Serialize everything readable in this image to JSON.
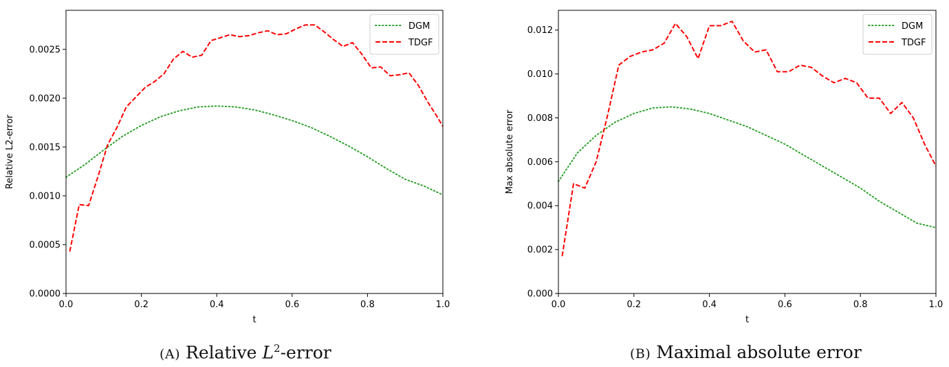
{
  "captions": {
    "a": {
      "label": "(A)",
      "text_before": "Relative ",
      "math": "L",
      "sup": "2",
      "text_after": "-error"
    },
    "b": {
      "label": "(B)",
      "text": "Maximal absolute error"
    }
  },
  "colors": {
    "DGM": "#2ca02c",
    "TDGF": "#ff0000"
  },
  "chart_data": [
    {
      "type": "line",
      "xlabel": "t",
      "ylabel": "Relative L2-error",
      "xlim": [
        0.0,
        1.0
      ],
      "ylim": [
        0.0,
        0.0029
      ],
      "xticks": [
        "0.0",
        "0.2",
        "0.4",
        "0.6",
        "0.8",
        "1.0"
      ],
      "yticks": [
        "0.0000",
        "0.0005",
        "0.0010",
        "0.0015",
        "0.0020",
        "0.0025"
      ],
      "grid": false,
      "legend": "top-right",
      "series": [
        {
          "name": "DGM",
          "style": "dotted",
          "x": [
            0.0,
            0.05,
            0.1,
            0.15,
            0.2,
            0.25,
            0.3,
            0.35,
            0.4,
            0.45,
            0.5,
            0.55,
            0.6,
            0.65,
            0.7,
            0.75,
            0.8,
            0.85,
            0.9,
            0.95,
            1.0
          ],
          "y": [
            0.00119,
            0.00132,
            0.00147,
            0.00161,
            0.00172,
            0.00181,
            0.00187,
            0.00191,
            0.00192,
            0.00191,
            0.00188,
            0.00183,
            0.00177,
            0.0017,
            0.00161,
            0.00151,
            0.0014,
            0.00128,
            0.00117,
            0.0011,
            0.00101
          ]
        },
        {
          "name": "TDGF",
          "style": "dashed",
          "x": [
            0.01,
            0.035,
            0.06,
            0.085,
            0.11,
            0.135,
            0.16,
            0.185,
            0.21,
            0.235,
            0.26,
            0.285,
            0.31,
            0.335,
            0.36,
            0.385,
            0.41,
            0.435,
            0.46,
            0.485,
            0.51,
            0.535,
            0.56,
            0.585,
            0.61,
            0.635,
            0.66,
            0.685,
            0.71,
            0.735,
            0.76,
            0.785,
            0.81,
            0.835,
            0.86,
            0.885,
            0.91,
            0.935,
            0.96,
            0.985,
            1.0
          ],
          "y": [
            0.00043,
            0.00091,
            0.0009,
            0.0012,
            0.00152,
            0.0017,
            0.00191,
            0.00201,
            0.00211,
            0.00217,
            0.00225,
            0.0024,
            0.00248,
            0.00242,
            0.00244,
            0.00259,
            0.00262,
            0.00265,
            0.00263,
            0.00264,
            0.00267,
            0.00269,
            0.00265,
            0.00266,
            0.00271,
            0.00275,
            0.00275,
            0.00268,
            0.0026,
            0.00253,
            0.00257,
            0.00245,
            0.00231,
            0.00232,
            0.00223,
            0.00224,
            0.00226,
            0.00213,
            0.00196,
            0.00181,
            0.00171
          ]
        }
      ]
    },
    {
      "type": "line",
      "xlabel": "t",
      "ylabel": "Max absolute error",
      "xlim": [
        0.0,
        1.0
      ],
      "ylim": [
        0.0,
        0.0129
      ],
      "xticks": [
        "0.0",
        "0.2",
        "0.4",
        "0.6",
        "0.8",
        "1.0"
      ],
      "yticks": [
        "0.000",
        "0.002",
        "0.004",
        "0.006",
        "0.008",
        "0.010",
        "0.012"
      ],
      "grid": false,
      "legend": "top-right",
      "series": [
        {
          "name": "DGM",
          "style": "dotted",
          "x": [
            0.0,
            0.05,
            0.1,
            0.15,
            0.2,
            0.25,
            0.3,
            0.35,
            0.4,
            0.45,
            0.5,
            0.55,
            0.6,
            0.65,
            0.7,
            0.75,
            0.8,
            0.85,
            0.9,
            0.95,
            1.0
          ],
          "y": [
            0.0051,
            0.0064,
            0.0072,
            0.0078,
            0.0082,
            0.00845,
            0.0085,
            0.0084,
            0.0082,
            0.0079,
            0.0076,
            0.0072,
            0.0068,
            0.0063,
            0.0058,
            0.0053,
            0.0048,
            0.0042,
            0.0037,
            0.0032,
            0.003
          ]
        },
        {
          "name": "TDGF",
          "style": "dashed",
          "x": [
            0.01,
            0.04,
            0.07,
            0.1,
            0.13,
            0.16,
            0.19,
            0.22,
            0.25,
            0.28,
            0.31,
            0.34,
            0.37,
            0.4,
            0.43,
            0.46,
            0.49,
            0.52,
            0.55,
            0.58,
            0.61,
            0.64,
            0.67,
            0.7,
            0.73,
            0.76,
            0.79,
            0.82,
            0.85,
            0.88,
            0.91,
            0.94,
            0.97,
            1.0
          ],
          "y": [
            0.0017,
            0.005,
            0.0048,
            0.006,
            0.0081,
            0.0104,
            0.0108,
            0.011,
            0.0111,
            0.0114,
            0.0123,
            0.0117,
            0.0107,
            0.0122,
            0.0122,
            0.0124,
            0.0115,
            0.011,
            0.0111,
            0.0101,
            0.0101,
            0.0104,
            0.0103,
            0.0099,
            0.0096,
            0.0098,
            0.0096,
            0.0089,
            0.0089,
            0.0082,
            0.0087,
            0.008,
            0.0068,
            0.0058
          ]
        }
      ]
    }
  ]
}
